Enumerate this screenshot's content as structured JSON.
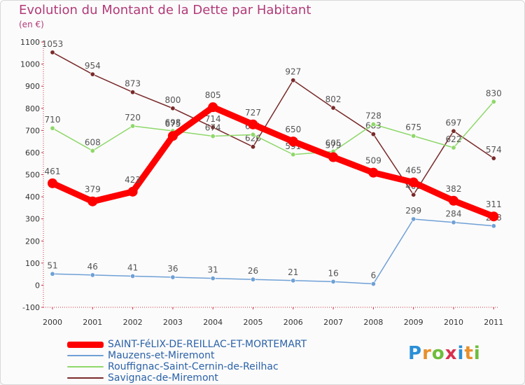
{
  "chart_data": {
    "type": "line",
    "title": "Evolution du Montant de la Dette par Habitant",
    "subtitle": "(en €)",
    "x": [
      "2000",
      "2001",
      "2002",
      "2003",
      "2004",
      "2005",
      "2006",
      "2007",
      "2008",
      "2009",
      "2010",
      "2011"
    ],
    "ylim": [
      -100,
      1100
    ],
    "yticks": [
      -100,
      0,
      100,
      200,
      300,
      400,
      500,
      600,
      700,
      800,
      900,
      1000,
      1100
    ],
    "grid": false,
    "legend_position": "bottom",
    "series": [
      {
        "name": "Savignac-de-Miremont",
        "color": "#7a2a2a",
        "values": [
          1053,
          954,
          873,
          800,
          714,
          626,
          927,
          802,
          683,
          409,
          697,
          574
        ]
      },
      {
        "name": "Rouffignac-Saint-Cernin-de-Reilhac",
        "color": "#8fd86b",
        "values": [
          710,
          608,
          720,
          698,
          674,
          681,
          591,
          605,
          728,
          675,
          622,
          830
        ]
      },
      {
        "name": "Mauzens-et-Miremont",
        "color": "#6fa0d6",
        "values": [
          51,
          46,
          41,
          36,
          31,
          26,
          21,
          16,
          6,
          299,
          284,
          268
        ]
      },
      {
        "name": "SAINT-FéLIX-DE-REILLAC-ET-MORTEMART",
        "color": "#ff0000",
        "values": [
          461,
          379,
          423,
          675,
          805,
          727,
          650,
          579,
          509,
          465,
          382,
          311
        ]
      }
    ]
  },
  "legend": [
    {
      "label": "SAINT-FéLIX-DE-REILLAC-ET-MORTEMART",
      "color": "#ff0000",
      "thickness": 9
    },
    {
      "label": "Mauzens-et-Miremont",
      "color": "#6fa0d6",
      "thickness": 2
    },
    {
      "label": "Rouffignac-Saint-Cernin-de-Reilhac",
      "color": "#8fd86b",
      "thickness": 2
    },
    {
      "label": "Savignac-de-Miremont",
      "color": "#7a2a2a",
      "thickness": 2
    }
  ],
  "logo": "Proxiti"
}
